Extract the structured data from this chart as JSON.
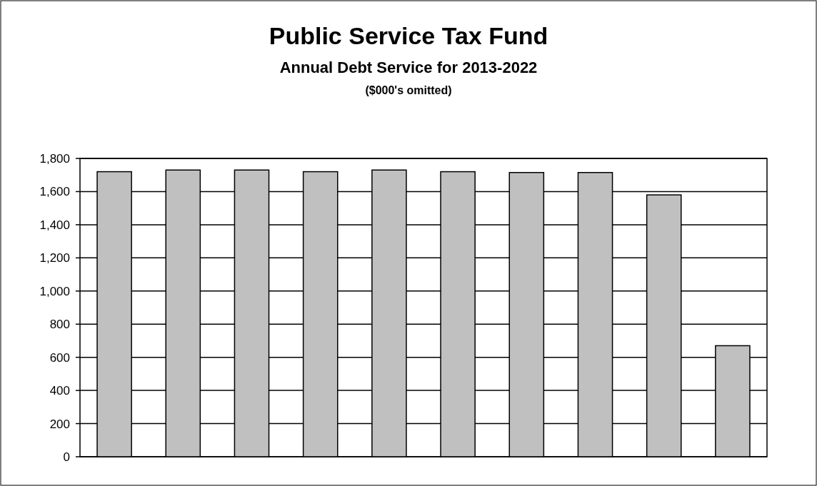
{
  "chart_data": {
    "type": "bar",
    "title": "Public Service Tax Fund",
    "subtitle": "Annual Debt Service for 2013-2022",
    "annotations": [
      "($000's omitted)"
    ],
    "categories": [
      null,
      null,
      null,
      null,
      null,
      null,
      null,
      null,
      null,
      null
    ],
    "values": [
      1720,
      1730,
      1730,
      1720,
      1730,
      1720,
      1715,
      1715,
      1580,
      670
    ],
    "color": "#c0c0c0",
    "ylim": [
      0,
      1800
    ],
    "yticks": [
      0,
      {
        "value": 200,
        "label": "200"
      },
      {
        "value": 400,
        "label": "400"
      },
      {
        "value": 600,
        "label": "600"
      },
      {
        "value": 800,
        "label": "800"
      },
      {
        "value": 1000,
        "label": "1,000"
      },
      {
        "value": 1200,
        "label": "1,200"
      },
      {
        "value": 1400,
        "label": "1,400"
      },
      {
        "value": 1600,
        "label": "1,600"
      },
      {
        "value": 1800,
        "label": "1,800"
      }
    ],
    "grid": "y"
  }
}
